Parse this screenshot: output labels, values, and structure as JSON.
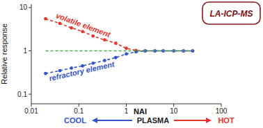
{
  "chart_data": {
    "type": "line",
    "x_label": "NAI",
    "y_label": "Relative response",
    "annotations": [
      "LA-ICP-MS",
      "COOL",
      "PLASMA",
      "HOT"
    ],
    "log": true,
    "x": [
      0.02,
      0.04,
      0.07,
      0.12,
      0.2,
      0.35,
      0.6,
      1,
      1.6,
      2.5,
      4,
      6,
      10,
      16,
      25
    ],
    "series": [
      {
        "name": "volatile element",
        "color": "#e8322b",
        "marker": "circle",
        "line_style": "dashed",
        "values": [
          5.5,
          4.3,
          3.4,
          2.8,
          2.2,
          1.8,
          1.5,
          1.15,
          1.02,
          1,
          1,
          1,
          1,
          1,
          1
        ]
      },
      {
        "name": "refractory element",
        "color": "#3355cc",
        "marker": "circle",
        "line_style": "dashed",
        "values": [
          0.3,
          0.35,
          0.4,
          0.45,
          0.52,
          0.6,
          0.7,
          0.85,
          0.95,
          1,
          1,
          1,
          1,
          1,
          1
        ]
      },
      {
        "color": "#3cb043",
        "marker": "none",
        "line_style": "dashed",
        "values": [
          1,
          1,
          1,
          1,
          1,
          1,
          1,
          1,
          1,
          1,
          1,
          1,
          1,
          1,
          1
        ]
      }
    ],
    "xlim": [
      0.01,
      100
    ],
    "ylim": [
      0.06,
      12
    ],
    "xticks": [
      0.01,
      0.1,
      1,
      10,
      100
    ],
    "yticks": [
      0.1,
      1,
      10
    ],
    "grid": false
  }
}
